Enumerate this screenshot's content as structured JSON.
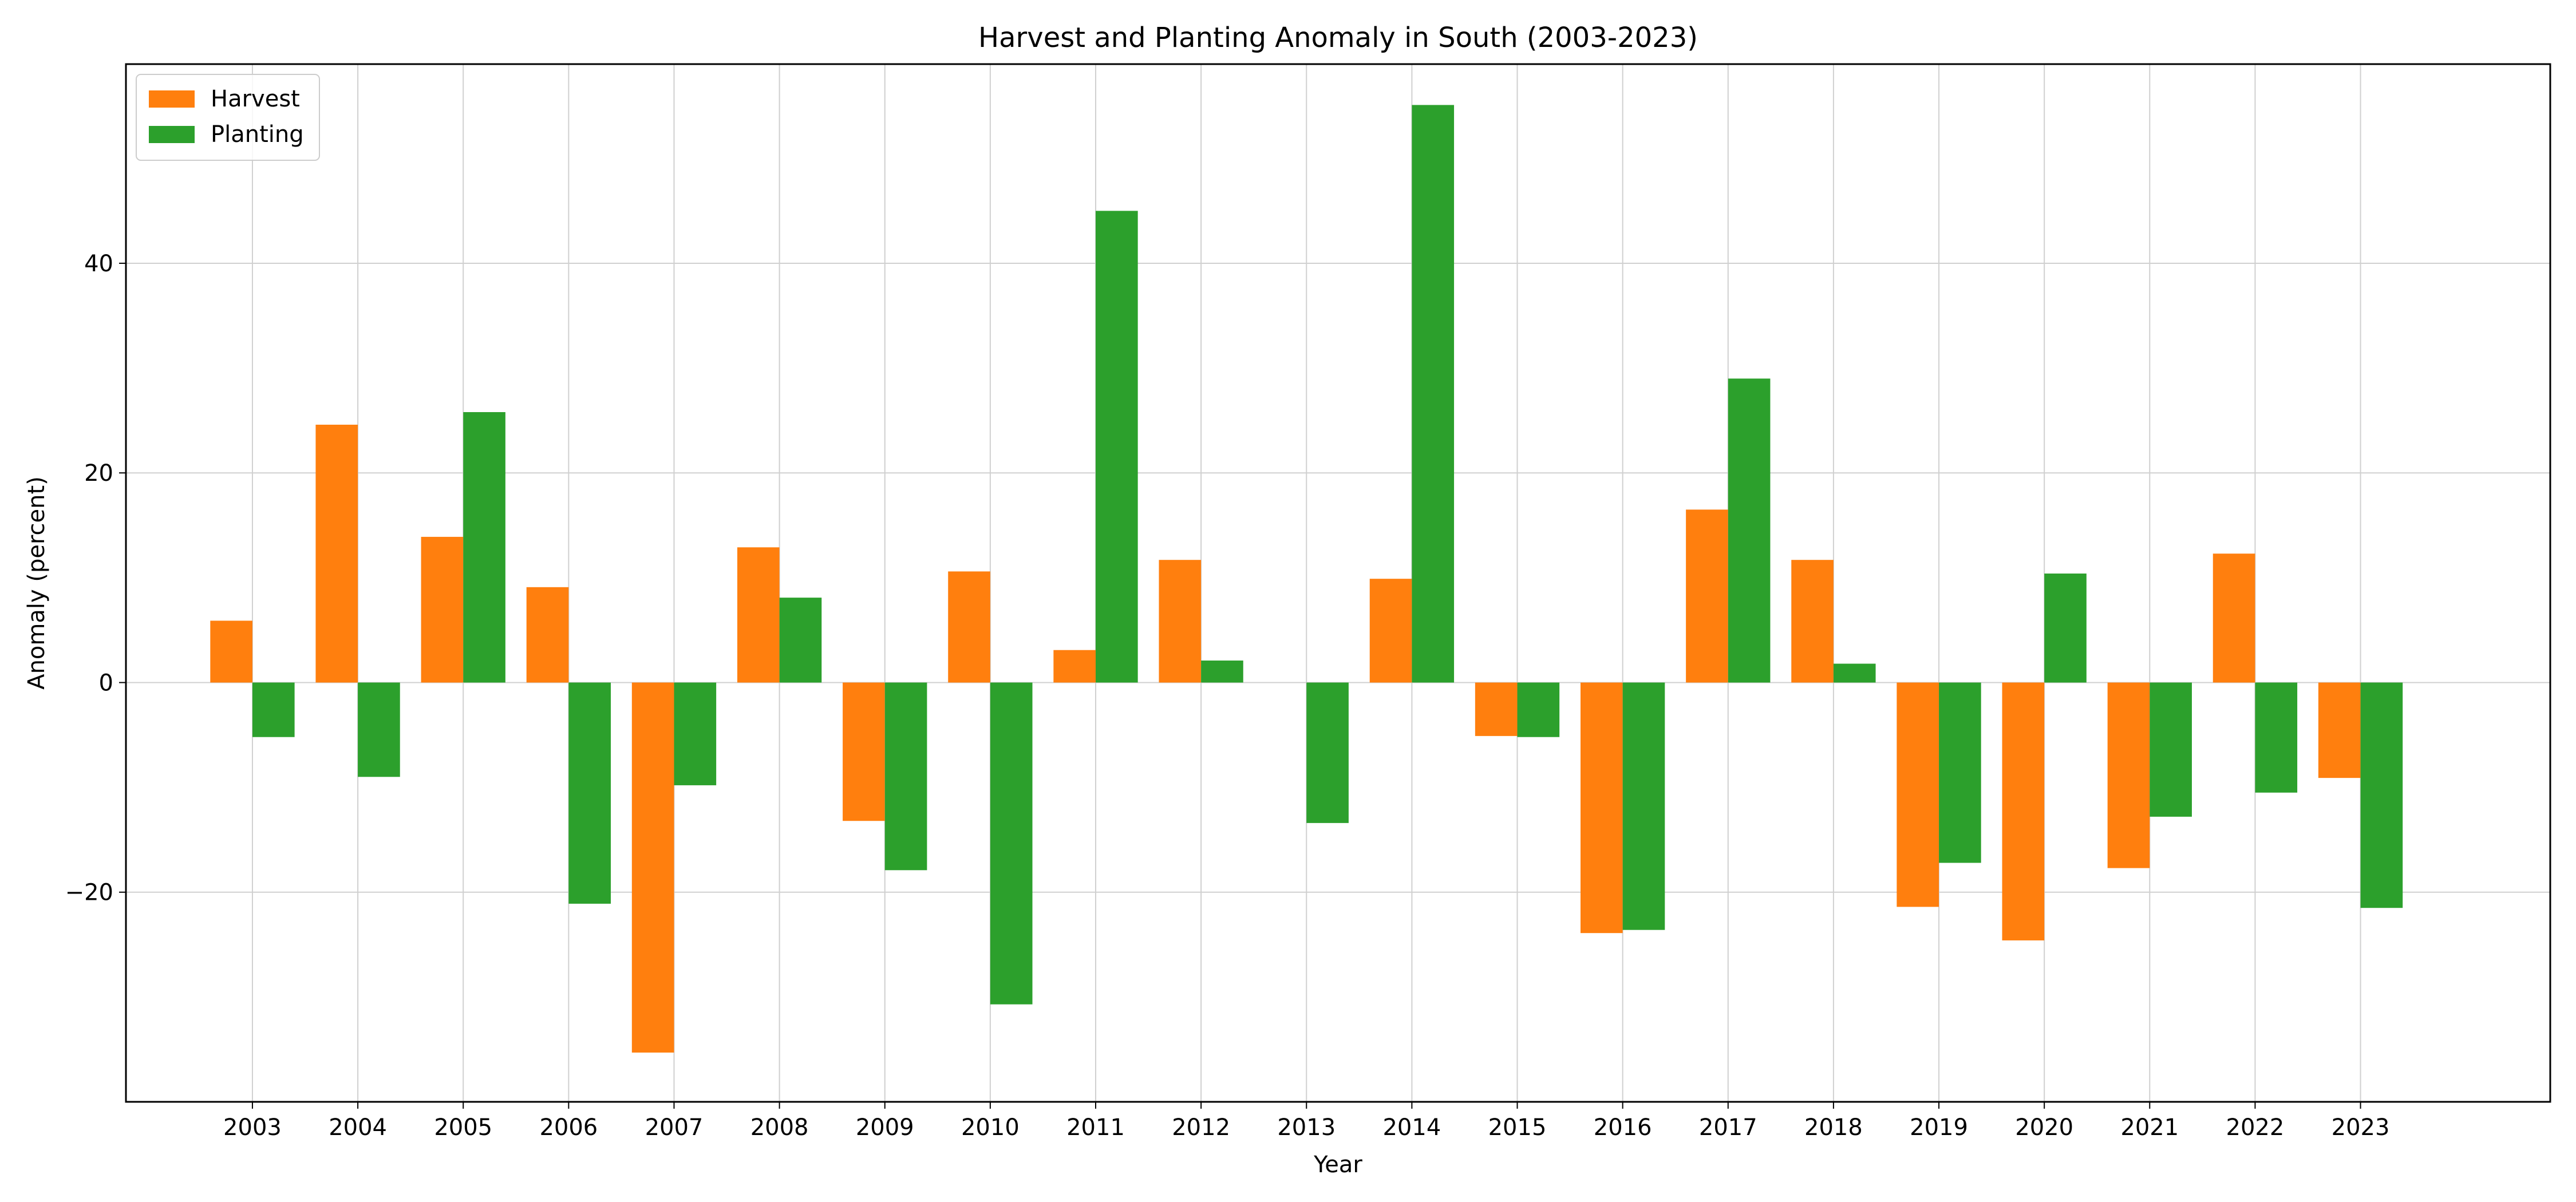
{
  "chart_data": {
    "type": "bar",
    "title": "Harvest and Planting Anomaly in South (2003-2023)",
    "xlabel": "Year",
    "ylabel": "Anomaly (percent)",
    "categories": [
      "2003",
      "2004",
      "2005",
      "2006",
      "2007",
      "2008",
      "2009",
      "2010",
      "2011",
      "2012",
      "2013",
      "2014",
      "2015",
      "2016",
      "2017",
      "2018",
      "2019",
      "2020",
      "2021",
      "2022",
      "2023"
    ],
    "series": [
      {
        "name": "Harvest",
        "color": "#ff7f0e",
        "values": [
          5.9,
          24.6,
          13.9,
          9.1,
          -35.3,
          12.9,
          -13.2,
          10.6,
          3.1,
          11.7,
          0,
          9.9,
          -5.1,
          -23.9,
          16.5,
          11.7,
          -21.4,
          -24.6,
          -17.7,
          12.3,
          -9.1
        ]
      },
      {
        "name": "Planting",
        "color": "#2ca02c",
        "values": [
          -5.2,
          -9.0,
          25.8,
          -21.1,
          -9.8,
          8.1,
          -17.9,
          -30.7,
          45.0,
          2.1,
          -13.4,
          55.1,
          -5.2,
          -23.6,
          29.0,
          1.8,
          -17.2,
          10.4,
          -12.8,
          -10.5,
          -21.5
        ]
      }
    ],
    "yticks": [
      -20,
      0,
      20,
      40
    ],
    "ylim": [
      -40,
      59
    ],
    "grid": true,
    "legend_position": "top-left"
  }
}
